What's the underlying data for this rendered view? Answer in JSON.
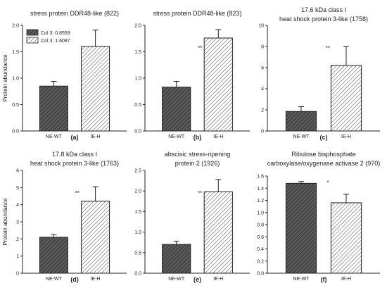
{
  "chart_data": [
    {
      "type": "bar",
      "title": "stress protein DDR48-like (822)",
      "ylabel": "Protein abundance",
      "categories": [
        "NE-WT",
        "IE-H"
      ],
      "values": [
        0.85,
        1.6
      ],
      "errors": [
        0.09,
        0.31
      ],
      "ylim": [
        0,
        2.0
      ],
      "yticks": [
        "0.0",
        "0.5",
        "1.0",
        "1.5",
        "2.0"
      ],
      "significance": "",
      "panel_label": "(a)",
      "legend": [
        "Col 3: 0.8559",
        "Col 3: 1.6087"
      ]
    },
    {
      "type": "bar",
      "title": "stress protein DDR48-like (823)",
      "ylabel": "",
      "categories": [
        "NE-WT",
        "IE-H"
      ],
      "values": [
        0.83,
        1.76
      ],
      "errors": [
        0.11,
        0.16
      ],
      "ylim": [
        0,
        2.0
      ],
      "yticks": [
        "0.0",
        "0.5",
        "1.0",
        "1.5",
        "2.0"
      ],
      "significance": "**",
      "panel_label": "(b)"
    },
    {
      "type": "bar",
      "title": "17.6 kDa class I heat shock protein 3-like (1758)",
      "title_lines": [
        "17.6 kDa class I",
        "heat shock protein 3-like (1758)"
      ],
      "ylabel": "",
      "categories": [
        "NE-WT",
        "IE-H"
      ],
      "values": [
        1.85,
        6.2
      ],
      "errors": [
        0.45,
        1.8
      ],
      "ylim": [
        0,
        10
      ],
      "yticks": [
        "0",
        "2",
        "4",
        "6",
        "8",
        "10"
      ],
      "significance": "**",
      "panel_label": "(c)"
    },
    {
      "type": "bar",
      "title": "17.8 kDa class I heat shock protein 3-like (1763)",
      "title_lines": [
        "17.8 kDa class I",
        "heat shock protein 3-like (1763)"
      ],
      "ylabel": "Protein abundance",
      "categories": [
        "NE-WT",
        "IE-H"
      ],
      "values": [
        2.1,
        4.2
      ],
      "errors": [
        0.15,
        0.85
      ],
      "ylim": [
        0,
        6
      ],
      "yticks": [
        "0",
        "1",
        "2",
        "3",
        "4",
        "5",
        "6"
      ],
      "significance": "**",
      "panel_label": "(d)"
    },
    {
      "type": "bar",
      "title": "abscisic stress-ripening protein 2 (1926)",
      "title_lines": [
        "abscisic stress-ripening",
        "protein 2 (1926)"
      ],
      "ylabel": "",
      "categories": [
        "NE-WT",
        "IE-H"
      ],
      "values": [
        0.7,
        1.98
      ],
      "errors": [
        0.08,
        0.3
      ],
      "ylim": [
        0,
        2.5
      ],
      "yticks": [
        "0.0",
        "0.5",
        "1.0",
        "1.5",
        "2.0",
        "2.5"
      ],
      "significance": "**",
      "panel_label": "(e)"
    },
    {
      "type": "bar",
      "title": "Ribulose bisphosphate carboxylase/oxygenase activase 2 (970)",
      "title_lines": [
        "Ribulose bisphosphate",
        "carboxylase/oxygenase activase 2 (970)"
      ],
      "ylabel": "",
      "categories": [
        "NE-WT",
        "IE-H"
      ],
      "values": [
        1.48,
        1.16
      ],
      "errors": [
        0.03,
        0.14
      ],
      "ylim": [
        0,
        1.6
      ],
      "yticks": [
        "0.0",
        "0.2",
        "0.4",
        "0.6",
        "0.8",
        "1.0",
        "1.2",
        "1.4",
        "1.6"
      ],
      "significance": "*",
      "panel_label": "(f)"
    }
  ],
  "colors": {
    "bar_dark": "#5a5a5a",
    "bar_light": "#ffffff",
    "stroke": "#222222"
  }
}
